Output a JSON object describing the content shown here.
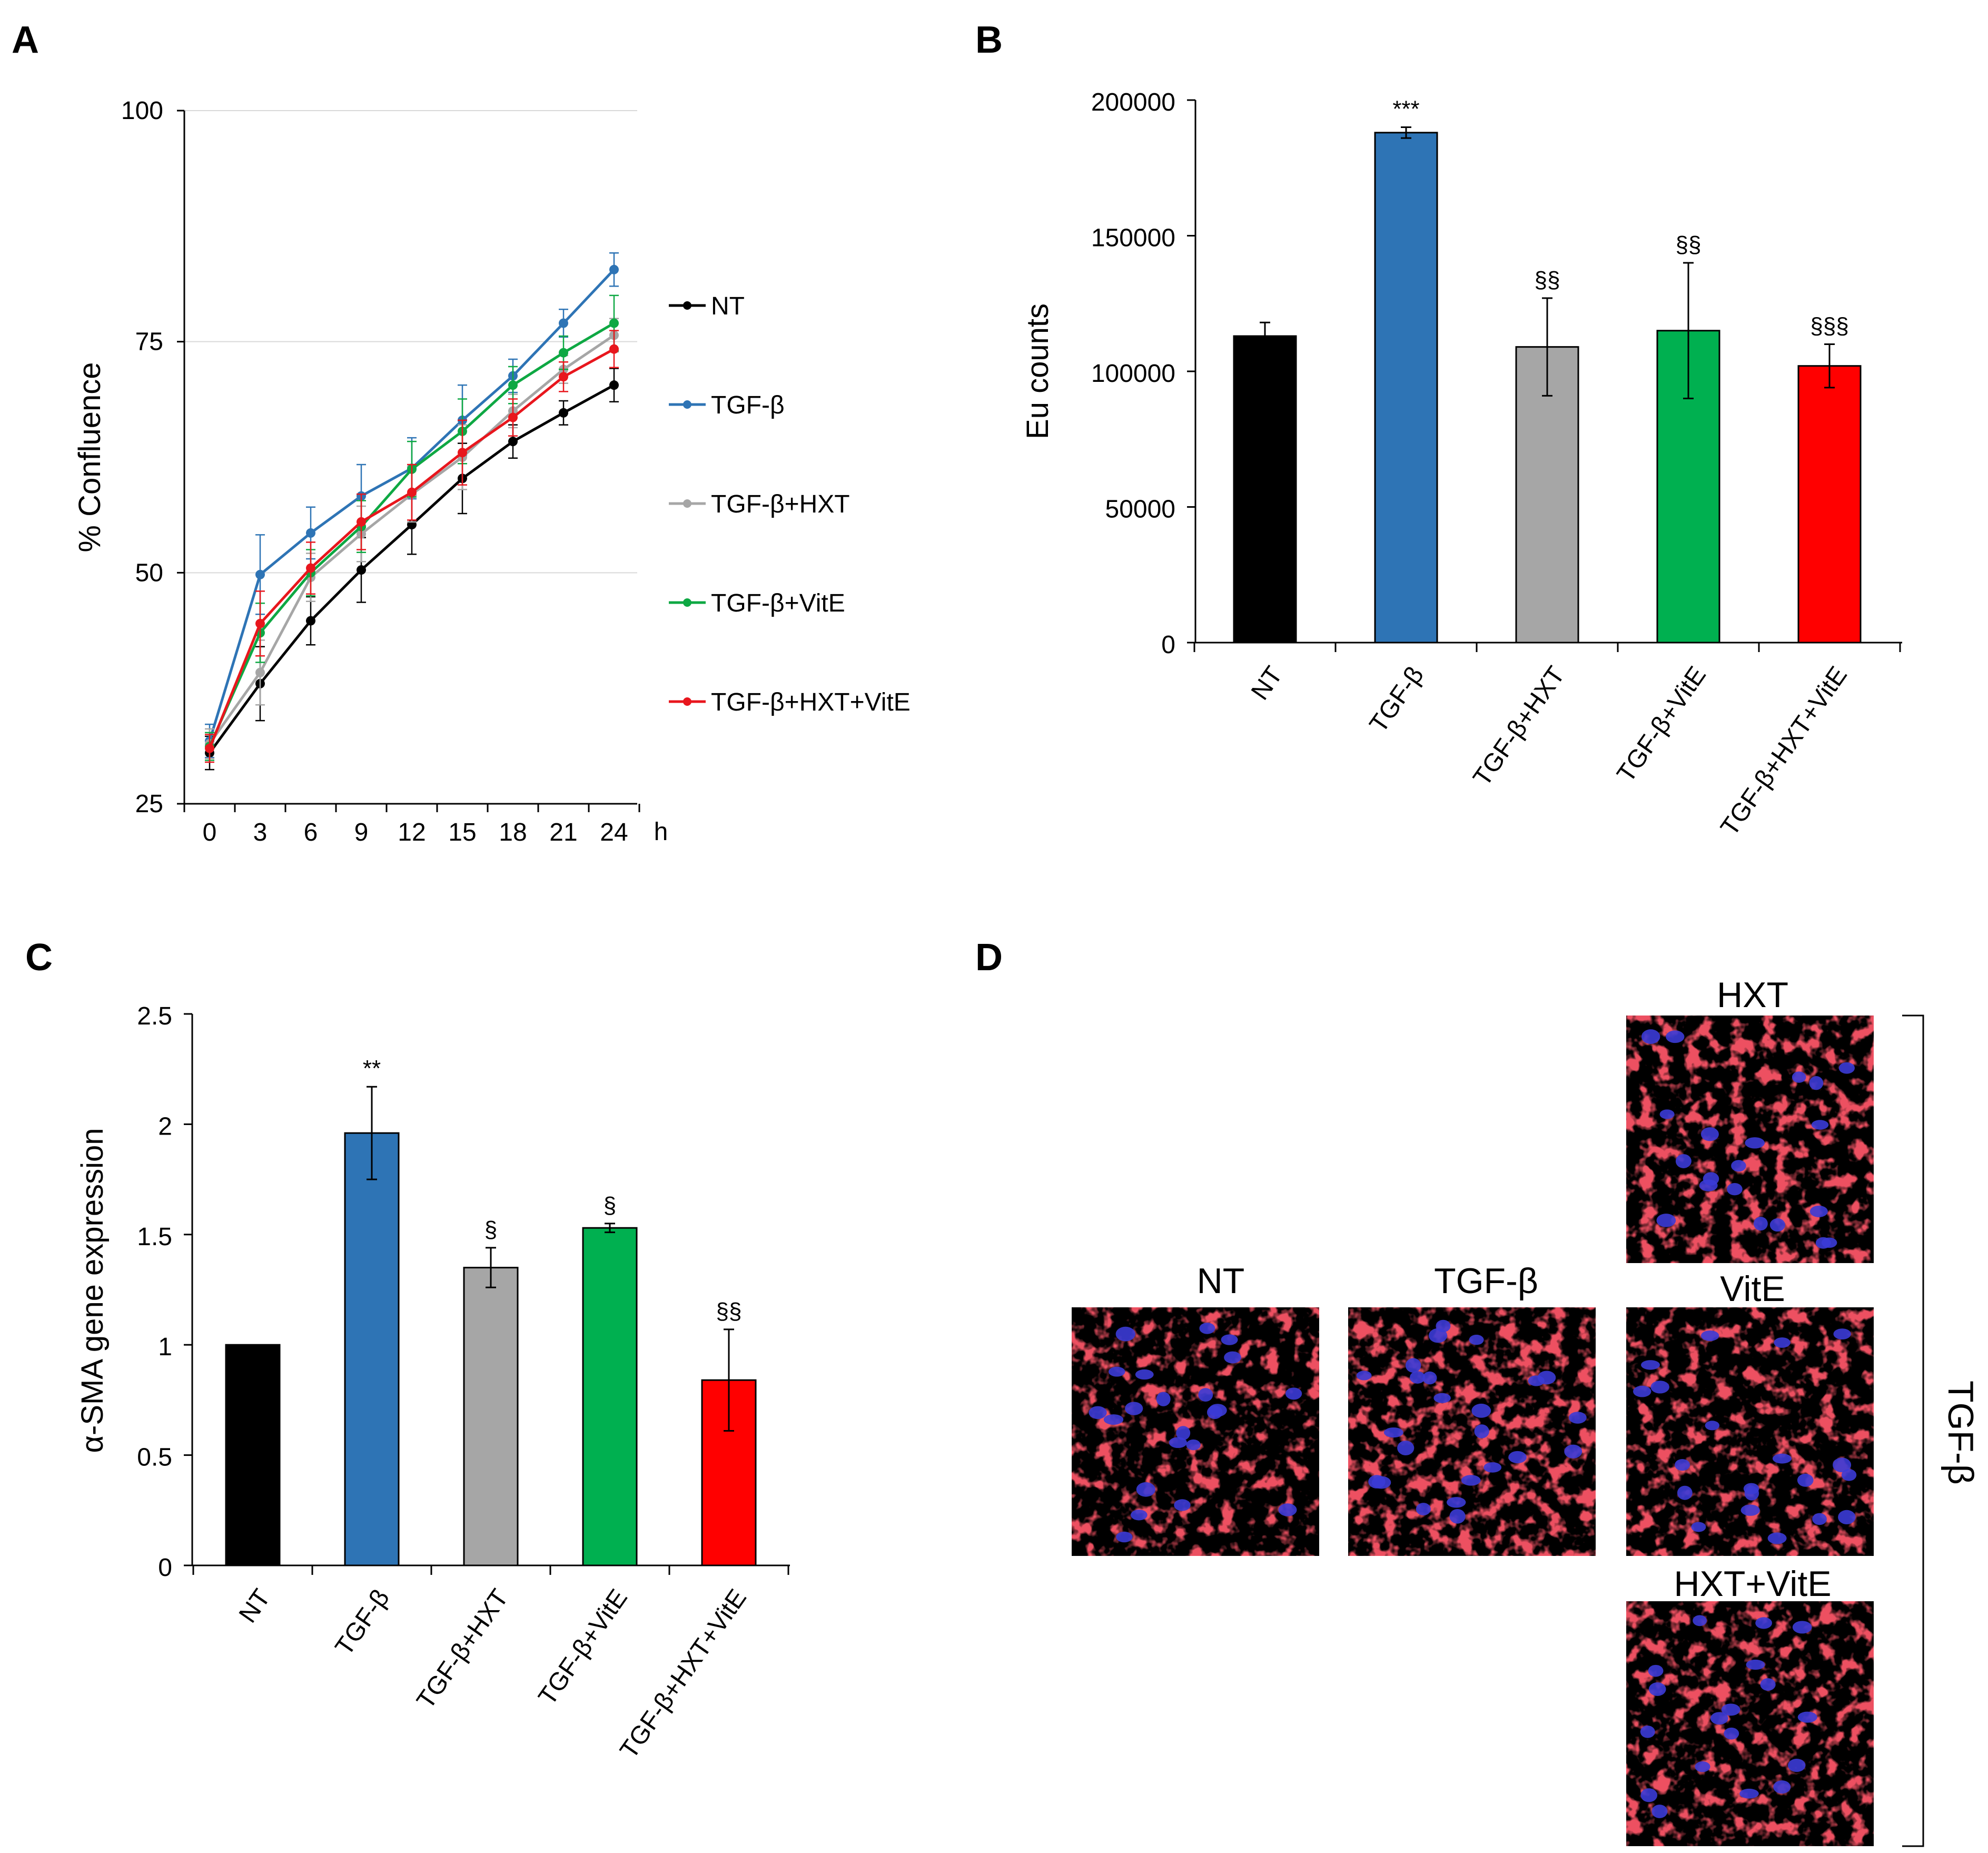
{
  "panels": {
    "a": "A",
    "b": "B",
    "c": "C",
    "d": "D"
  },
  "chart_data": [
    {
      "panel": "A",
      "type": "line",
      "ylabel": "% Confluence",
      "x_unit_label": "h",
      "x": [
        0,
        3,
        6,
        9,
        12,
        15,
        18,
        21,
        24
      ],
      "xticks": [
        "0",
        "3",
        "6",
        "9",
        "12",
        "15",
        "18",
        "21",
        "24"
      ],
      "ylim": [
        25,
        100
      ],
      "yticks": [
        "25",
        "50",
        "75",
        "100"
      ],
      "grid": true,
      "legend_position": "right",
      "series": [
        {
          "name": "NT",
          "color": "#000000",
          "values": [
            30.5,
            38,
            44.8,
            50.3,
            55.2,
            60.2,
            64.2,
            67.3,
            70.3
          ],
          "errors": [
            1.8,
            4,
            2.6,
            3.5,
            3.2,
            3.8,
            1.8,
            1.3,
            1.8
          ]
        },
        {
          "name": "TGF-β",
          "color": "#2e74b5",
          "values": [
            31.8,
            49.8,
            54.3,
            58.3,
            61.3,
            66.5,
            71.3,
            77,
            82.8
          ],
          "errors": [
            1.8,
            4.3,
            2.8,
            3.4,
            3.3,
            3.8,
            1.8,
            1.5,
            1.8
          ]
        },
        {
          "name": "TGF-β+HXT",
          "color": "#a6a6a6",
          "values": [
            31.5,
            39.2,
            49.5,
            54.2,
            58.5,
            62.5,
            67.5,
            72,
            75.7
          ],
          "errors": [
            1.6,
            3.5,
            2.6,
            3,
            3,
            3.5,
            1.8,
            1.5,
            1.8
          ]
        },
        {
          "name": "TGF-β+VitE",
          "color": "#0ea843",
          "values": [
            31.2,
            43.5,
            50,
            55,
            61.2,
            65.3,
            70.3,
            73.8,
            77
          ],
          "errors": [
            1.5,
            3.2,
            2.5,
            2.8,
            3,
            3.5,
            2,
            1.8,
            3
          ]
        },
        {
          "name": "TGF-β+HXT+VitE",
          "color": "#e8161d",
          "values": [
            31,
            44.5,
            50.5,
            55.5,
            58.7,
            63,
            66.8,
            71.2,
            74.2
          ],
          "errors": [
            1.5,
            3.5,
            2.8,
            3,
            3,
            3.5,
            2,
            1.6,
            2
          ]
        }
      ]
    },
    {
      "panel": "B",
      "type": "bar",
      "ylabel": "Eu counts",
      "categories": [
        "NT",
        "TGF-β",
        "TGF-β+HXT",
        "TGF-β+VitE",
        "TGF-β+HXT+VitE"
      ],
      "values": [
        113000,
        188000,
        109000,
        115000,
        102000
      ],
      "errors": [
        5000,
        2000,
        18000,
        25000,
        8000
      ],
      "colors": [
        "#000000",
        "#2e74b5",
        "#a6a6a6",
        "#00b050",
        "#ff0000"
      ],
      "annotations": [
        "",
        "***",
        "§§",
        "§§",
        "§§§"
      ],
      "ylim": [
        0,
        200000
      ],
      "yticks": [
        "0",
        "50000",
        "100000",
        "150000",
        "200000"
      ],
      "grid": false
    },
    {
      "panel": "C",
      "type": "bar",
      "ylabel": "α-SMA gene expression",
      "categories": [
        "NT",
        "TGF-β",
        "TGF-β+HXT",
        "TGF-β+VitE",
        "TGF-β+HXT+VitE"
      ],
      "values": [
        1.0,
        1.96,
        1.35,
        1.53,
        0.84
      ],
      "errors": [
        0,
        0.21,
        0.09,
        0.02,
        0.23
      ],
      "colors": [
        "#000000",
        "#2e74b5",
        "#a6a6a6",
        "#00b050",
        "#ff0000"
      ],
      "annotations": [
        "",
        "**",
        "§",
        "§",
        "§§"
      ],
      "ylim": [
        0,
        2.5
      ],
      "yticks": [
        "0",
        "0.5",
        "1",
        "1.5",
        "2",
        "2.5"
      ],
      "grid": false
    }
  ],
  "panel_d": {
    "titles": [
      "NT",
      "TGF-β",
      "HXT",
      "VitE",
      "HXT+VitE"
    ],
    "bracket_label": "TGF-β"
  }
}
